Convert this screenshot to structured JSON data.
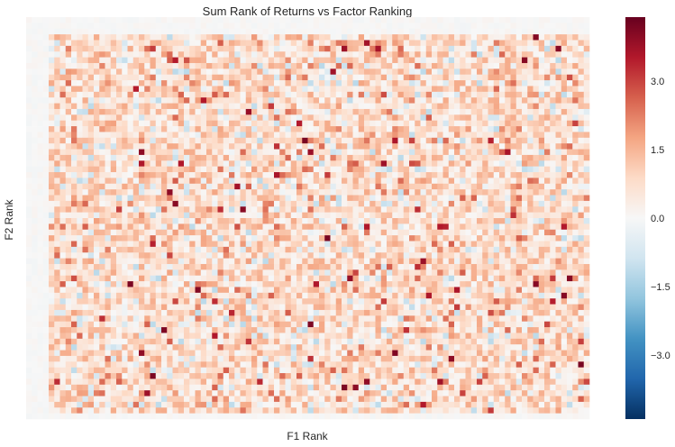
{
  "chart_data": {
    "type": "heatmap",
    "title": "Sum Rank of Returns vs Factor Ranking",
    "xlabel": "F1 Rank",
    "ylabel": "F2 Rank",
    "grid": false,
    "n_cols": 100,
    "n_rows": 70,
    "vmin": -4.4,
    "vmax": 4.4,
    "colorbar_ticks": [
      "3.0",
      "1.5",
      "0.0",
      "−1.5",
      "−3.0"
    ],
    "colorbar_tick_values": [
      3.0,
      1.5,
      0.0,
      -1.5,
      -3.0
    ],
    "colormap": "RdBu_r",
    "colormap_stops": [
      "#053061",
      "#2166ac",
      "#4393c3",
      "#92c5de",
      "#d1e5f0",
      "#f7f7f7",
      "#fddbc7",
      "#f4a582",
      "#d6604d",
      "#b2182b",
      "#67001f"
    ],
    "distribution_note": "Cell values are mostly small positive (light orange/salmon), with sparse deep-red outliers up to about 4 and a few pale-blue negatives; edges near zero."
  }
}
